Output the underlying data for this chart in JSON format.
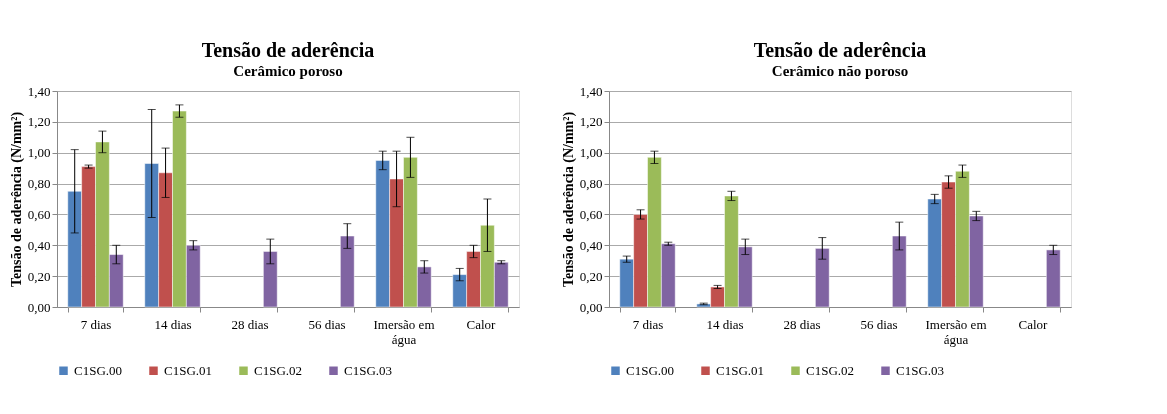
{
  "chart_data": [
    {
      "type": "bar",
      "title": "Tensão de aderência",
      "subtitle": "Cerâmico poroso",
      "ylabel": "Tensão de aderência (N/mm²)",
      "categories": [
        "7 dias",
        "14 dias",
        "28 dias",
        "56 dias",
        "Imersão em água",
        "Calor"
      ],
      "ylim": [
        0,
        1.4
      ],
      "yticks": [
        {
          "value": 0,
          "label": "0,00"
        },
        {
          "value": 0.2,
          "label": "0,20"
        },
        {
          "value": 0.4,
          "label": "0,40"
        },
        {
          "value": 0.6,
          "label": "0,60"
        },
        {
          "value": 0.8,
          "label": "0,80"
        },
        {
          "value": 1.0,
          "label": "1,00"
        },
        {
          "value": 1.2,
          "label": "1,20"
        },
        {
          "value": 1.4,
          "label": "1,40"
        }
      ],
      "grid": "y",
      "legend": "bottom",
      "series": [
        {
          "name": "C1SG.00",
          "color": "#4f81bd",
          "values": [
            0.75,
            0.93,
            null,
            null,
            0.95,
            0.21
          ],
          "errors": [
            0.27,
            0.35,
            null,
            null,
            0.06,
            0.04
          ]
        },
        {
          "name": "C1SG.01",
          "color": "#c0504d",
          "values": [
            0.91,
            0.87,
            null,
            null,
            0.83,
            0.36
          ],
          "errors": [
            0.01,
            0.16,
            null,
            null,
            0.18,
            0.04
          ]
        },
        {
          "name": "C1SG.02",
          "color": "#9bbb59",
          "values": [
            1.07,
            1.27,
            null,
            null,
            0.97,
            0.53
          ],
          "errors": [
            0.07,
            0.04,
            null,
            null,
            0.13,
            0.17
          ]
        },
        {
          "name": "C1SG.03",
          "color": "#8064a2",
          "values": [
            0.34,
            0.4,
            0.36,
            0.46,
            0.26,
            0.29
          ],
          "errors": [
            0.06,
            0.03,
            0.08,
            0.08,
            0.04,
            0.01
          ]
        }
      ]
    },
    {
      "type": "bar",
      "title": "Tensão de aderência",
      "subtitle": "Cerâmico não poroso",
      "ylabel": "Tensão de aderência (N/mm²)",
      "categories": [
        "7 dias",
        "14 dias",
        "28 dias",
        "56 dias",
        "Imersão em água",
        "Calor"
      ],
      "ylim": [
        0,
        1.4
      ],
      "yticks": [
        {
          "value": 0,
          "label": "0,00"
        },
        {
          "value": 0.2,
          "label": "0,20"
        },
        {
          "value": 0.4,
          "label": "0,40"
        },
        {
          "value": 0.6,
          "label": "0,60"
        },
        {
          "value": 0.8,
          "label": "0,80"
        },
        {
          "value": 1.0,
          "label": "1,00"
        },
        {
          "value": 1.2,
          "label": "1,20"
        },
        {
          "value": 1.4,
          "label": "1,40"
        }
      ],
      "grid": "y",
      "legend": "bottom",
      "series": [
        {
          "name": "C1SG.00",
          "color": "#4f81bd",
          "values": [
            0.31,
            0.02,
            null,
            null,
            0.7,
            null
          ],
          "errors": [
            0.02,
            0.005,
            null,
            null,
            0.03,
            null
          ]
        },
        {
          "name": "C1SG.01",
          "color": "#c0504d",
          "values": [
            0.6,
            0.13,
            null,
            null,
            0.81,
            null
          ],
          "errors": [
            0.03,
            0.01,
            null,
            null,
            0.04,
            null
          ]
        },
        {
          "name": "C1SG.02",
          "color": "#9bbb59",
          "values": [
            0.97,
            0.72,
            null,
            null,
            0.88,
            null
          ],
          "errors": [
            0.04,
            0.03,
            null,
            null,
            0.04,
            null
          ]
        },
        {
          "name": "C1SG.03",
          "color": "#8064a2",
          "values": [
            0.41,
            0.39,
            0.38,
            0.46,
            0.59,
            0.37
          ],
          "errors": [
            0.01,
            0.05,
            0.07,
            0.09,
            0.03,
            0.03
          ]
        }
      ]
    }
  ]
}
